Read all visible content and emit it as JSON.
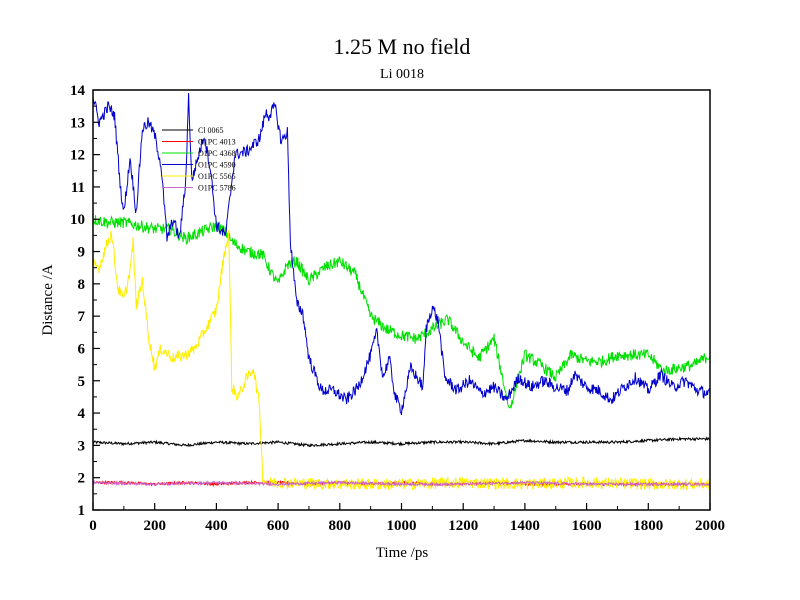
{
  "chart_data": {
    "type": "line",
    "title": "1.25 M no field",
    "subtitle": "Li 0018",
    "xlabel": "Time /ps",
    "ylabel": "Distance /A",
    "xlim": [
      0,
      2000
    ],
    "ylim": [
      1,
      14
    ],
    "x_ticks": [
      "0",
      "200",
      "400",
      "600",
      "800",
      "1000",
      "1200",
      "1400",
      "1600",
      "1800",
      "2000"
    ],
    "y_ticks": [
      "1",
      "2",
      "3",
      "4",
      "5",
      "6",
      "7",
      "8",
      "9",
      "10",
      "11",
      "12",
      "13",
      "14"
    ],
    "legend_position": "top-left",
    "series": [
      {
        "name": "Cl 0065",
        "color": "#000000",
        "points": [
          [
            0,
            3.1
          ],
          [
            100,
            3.05
          ],
          [
            200,
            3.1
          ],
          [
            300,
            3.0
          ],
          [
            400,
            3.1
          ],
          [
            500,
            3.05
          ],
          [
            600,
            3.1
          ],
          [
            700,
            3.0
          ],
          [
            800,
            3.05
          ],
          [
            900,
            3.1
          ],
          [
            1000,
            3.05
          ],
          [
            1100,
            3.1
          ],
          [
            1200,
            3.1
          ],
          [
            1300,
            3.05
          ],
          [
            1400,
            3.15
          ],
          [
            1500,
            3.1
          ],
          [
            1600,
            3.1
          ],
          [
            1700,
            3.1
          ],
          [
            1800,
            3.15
          ],
          [
            1900,
            3.2
          ],
          [
            2000,
            3.2
          ]
        ]
      },
      {
        "name": "O1PC 4013",
        "color": "#ff0000",
        "points": [
          [
            0,
            1.85
          ],
          [
            100,
            1.85
          ],
          [
            200,
            1.8
          ],
          [
            300,
            1.85
          ],
          [
            400,
            1.8
          ],
          [
            500,
            1.85
          ],
          [
            600,
            1.85
          ],
          [
            700,
            1.8
          ],
          [
            800,
            1.85
          ],
          [
            900,
            1.8
          ],
          [
            1000,
            1.85
          ],
          [
            1100,
            1.8
          ],
          [
            1200,
            1.8
          ],
          [
            1300,
            1.85
          ],
          [
            1400,
            1.8
          ],
          [
            1500,
            1.8
          ],
          [
            1600,
            1.8
          ],
          [
            1700,
            1.8
          ],
          [
            1800,
            1.8
          ],
          [
            1900,
            1.8
          ],
          [
            2000,
            1.8
          ]
        ]
      },
      {
        "name": "O1PC 4368",
        "color": "#00e000",
        "points": [
          [
            0,
            10.0
          ],
          [
            50,
            9.9
          ],
          [
            100,
            9.9
          ],
          [
            150,
            9.8
          ],
          [
            200,
            9.7
          ],
          [
            250,
            9.7
          ],
          [
            300,
            9.4
          ],
          [
            350,
            9.6
          ],
          [
            400,
            9.8
          ],
          [
            430,
            9.6
          ],
          [
            450,
            9.3
          ],
          [
            500,
            9.0
          ],
          [
            550,
            8.9
          ],
          [
            580,
            8.3
          ],
          [
            600,
            8.0
          ],
          [
            630,
            8.6
          ],
          [
            660,
            8.7
          ],
          [
            700,
            8.1
          ],
          [
            750,
            8.5
          ],
          [
            800,
            8.7
          ],
          [
            850,
            8.3
          ],
          [
            900,
            7.0
          ],
          [
            950,
            6.6
          ],
          [
            1000,
            6.4
          ],
          [
            1050,
            6.3
          ],
          [
            1100,
            6.6
          ],
          [
            1150,
            6.9
          ],
          [
            1200,
            6.2
          ],
          [
            1250,
            5.7
          ],
          [
            1300,
            6.3
          ],
          [
            1350,
            4.1
          ],
          [
            1400,
            5.8
          ],
          [
            1450,
            5.5
          ],
          [
            1500,
            5.1
          ],
          [
            1550,
            5.8
          ],
          [
            1600,
            5.6
          ],
          [
            1650,
            5.6
          ],
          [
            1700,
            5.8
          ],
          [
            1800,
            5.8
          ],
          [
            1850,
            5.3
          ],
          [
            1900,
            5.4
          ],
          [
            1950,
            5.5
          ],
          [
            2000,
            5.8
          ]
        ]
      },
      {
        "name": "O1PC 4590",
        "color": "#0000cc",
        "points": [
          [
            0,
            13.8
          ],
          [
            20,
            13.0
          ],
          [
            50,
            13.5
          ],
          [
            70,
            13.2
          ],
          [
            90,
            10.9
          ],
          [
            100,
            10.2
          ],
          [
            120,
            11.9
          ],
          [
            140,
            10.2
          ],
          [
            160,
            12.8
          ],
          [
            180,
            13.0
          ],
          [
            200,
            12.6
          ],
          [
            220,
            11.7
          ],
          [
            240,
            9.4
          ],
          [
            260,
            10.0
          ],
          [
            280,
            9.4
          ],
          [
            300,
            11.1
          ],
          [
            310,
            13.8
          ],
          [
            320,
            11.2
          ],
          [
            360,
            12.6
          ],
          [
            380,
            11.6
          ],
          [
            400,
            9.8
          ],
          [
            430,
            9.5
          ],
          [
            460,
            12.0
          ],
          [
            500,
            12.1
          ],
          [
            540,
            12.5
          ],
          [
            560,
            13.3
          ],
          [
            570,
            13.2
          ],
          [
            590,
            13.5
          ],
          [
            610,
            12.4
          ],
          [
            630,
            12.7
          ],
          [
            640,
            9.3
          ],
          [
            660,
            7.4
          ],
          [
            680,
            7.1
          ],
          [
            700,
            5.7
          ],
          [
            720,
            5.2
          ],
          [
            740,
            4.7
          ],
          [
            780,
            4.7
          ],
          [
            820,
            4.4
          ],
          [
            860,
            4.8
          ],
          [
            900,
            5.8
          ],
          [
            920,
            6.5
          ],
          [
            940,
            5.1
          ],
          [
            960,
            5.7
          ],
          [
            980,
            4.5
          ],
          [
            1000,
            4.1
          ],
          [
            1030,
            5.4
          ],
          [
            1070,
            4.8
          ],
          [
            1080,
            6.6
          ],
          [
            1100,
            7.3
          ],
          [
            1120,
            6.8
          ],
          [
            1140,
            5.1
          ],
          [
            1180,
            4.7
          ],
          [
            1220,
            5.0
          ],
          [
            1260,
            4.6
          ],
          [
            1300,
            4.8
          ],
          [
            1340,
            4.4
          ],
          [
            1380,
            5.1
          ],
          [
            1420,
            4.8
          ],
          [
            1460,
            5.0
          ],
          [
            1500,
            4.8
          ],
          [
            1540,
            4.7
          ],
          [
            1560,
            5.2
          ],
          [
            1600,
            4.8
          ],
          [
            1640,
            4.7
          ],
          [
            1680,
            4.4
          ],
          [
            1720,
            4.8
          ],
          [
            1760,
            5.1
          ],
          [
            1800,
            4.7
          ],
          [
            1840,
            5.2
          ],
          [
            1880,
            4.8
          ],
          [
            1920,
            5.0
          ],
          [
            1960,
            4.7
          ],
          [
            2000,
            4.6
          ]
        ]
      },
      {
        "name": "O1PC 5565",
        "color": "#ffee00",
        "points": [
          [
            0,
            8.6
          ],
          [
            20,
            8.5
          ],
          [
            40,
            9.1
          ],
          [
            60,
            9.6
          ],
          [
            80,
            7.9
          ],
          [
            100,
            7.5
          ],
          [
            120,
            8.4
          ],
          [
            130,
            9.3
          ],
          [
            140,
            7.3
          ],
          [
            160,
            8.1
          ],
          [
            180,
            6.4
          ],
          [
            200,
            5.4
          ],
          [
            220,
            6.0
          ],
          [
            260,
            5.7
          ],
          [
            300,
            5.8
          ],
          [
            330,
            6.0
          ],
          [
            360,
            6.5
          ],
          [
            400,
            7.2
          ],
          [
            420,
            8.6
          ],
          [
            440,
            9.6
          ],
          [
            450,
            4.8
          ],
          [
            470,
            4.5
          ],
          [
            500,
            5.1
          ],
          [
            520,
            5.4
          ],
          [
            540,
            4.2
          ],
          [
            550,
            2.0
          ],
          [
            560,
            1.85
          ],
          [
            600,
            1.85
          ],
          [
            800,
            1.8
          ],
          [
            1000,
            1.8
          ],
          [
            1200,
            1.85
          ],
          [
            1400,
            1.8
          ],
          [
            1600,
            1.85
          ],
          [
            1800,
            1.8
          ],
          [
            2000,
            1.8
          ]
        ]
      },
      {
        "name": "O1PC 5786",
        "color": "#cc66cc",
        "points": [
          [
            0,
            1.85
          ],
          [
            200,
            1.8
          ],
          [
            400,
            1.85
          ],
          [
            600,
            1.8
          ],
          [
            800,
            1.85
          ],
          [
            1000,
            1.8
          ],
          [
            1200,
            1.8
          ],
          [
            1400,
            1.85
          ],
          [
            1600,
            1.8
          ],
          [
            1800,
            1.8
          ],
          [
            2000,
            1.8
          ]
        ]
      }
    ]
  }
}
